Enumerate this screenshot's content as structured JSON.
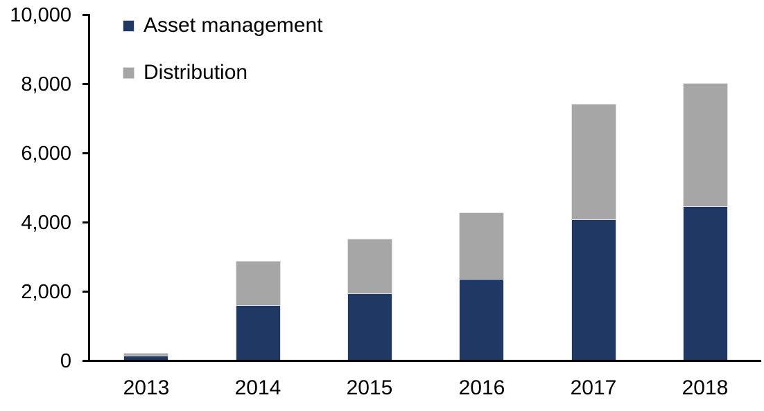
{
  "chart_data": {
    "type": "bar",
    "stacked": true,
    "title": "",
    "xlabel": "",
    "ylabel": "",
    "categories": [
      "2013",
      "2014",
      "2015",
      "2016",
      "2017",
      "2018"
    ],
    "series": [
      {
        "name": "Asset management",
        "color": "#203864",
        "values": [
          100,
          1560,
          1900,
          2320,
          4040,
          4420
        ]
      },
      {
        "name": "Distribution",
        "color": "#a6a6a6",
        "values": [
          100,
          1300,
          1600,
          1930,
          3350,
          3580
        ]
      }
    ],
    "totals": [
      200,
      2860,
      3500,
      4250,
      7390,
      8000
    ],
    "ylim": [
      0,
      10000
    ],
    "ytick_interval": 2000,
    "ytick_labels": [
      "0",
      "2,000",
      "4,000",
      "6,000",
      "8,000",
      "10,000"
    ],
    "grid": false,
    "legend_position": "top-left-inside"
  },
  "colors": {
    "axis": "#000000",
    "background": "#ffffff",
    "bar_border": "#e2e2e2"
  }
}
